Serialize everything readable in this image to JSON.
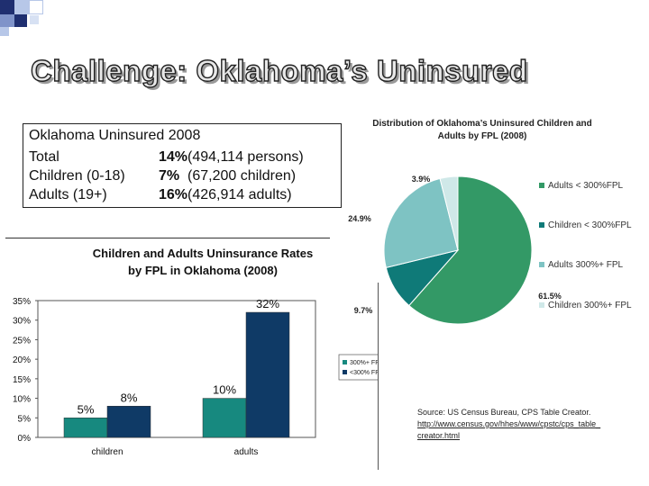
{
  "slide": {
    "title": "Challenge:  Oklahoma’s Uninsured"
  },
  "summary_box": {
    "heading": "Oklahoma Uninsured 2008",
    "rows": [
      {
        "label": "Total",
        "pct": "14%",
        "detail": "(494,114 persons)"
      },
      {
        "label": "Children (0-18)",
        "pct": "7%",
        "detail": "(67,200 children)"
      },
      {
        "label": "Adults (19+)",
        "pct": "16%",
        "detail": "(426,914 adults)"
      }
    ]
  },
  "bar_chart": {
    "title_line1": "Children and Adults Uninsurance Rates",
    "title_line2": "by FPL in Oklahoma (2008)",
    "legend": [
      "300%+ FPL",
      "<300% FPL"
    ]
  },
  "pie_chart": {
    "title_line1": "Distribution of Oklahoma’s Uninsured Children and",
    "title_line2": "Adults by FPL (2008)"
  },
  "source": {
    "text": "Source:  US Census Bureau, CPS Table Creator.",
    "link": "http://www.census.gov/hhes/www/cpstc/cps_table_",
    "link2": "creator.html"
  },
  "chart_data": [
    {
      "type": "bar",
      "title": "Children and Adults Uninsurance Rates by FPL in Oklahoma (2008)",
      "categories": [
        "children",
        "adults"
      ],
      "series": [
        {
          "name": "300%+ FPL",
          "values": [
            5,
            10
          ],
          "labels": [
            "5%",
            "10%"
          ],
          "color": "#17897f"
        },
        {
          "name": "<300% FPL",
          "values": [
            8,
            32
          ],
          "labels": [
            "8%",
            "32%"
          ],
          "color": "#0f3a66"
        }
      ],
      "ylim": [
        0,
        35
      ],
      "yticks": [
        0,
        5,
        10,
        15,
        20,
        25,
        30,
        35
      ],
      "ytick_labels": [
        "0%",
        "5%",
        "10%",
        "15%",
        "20%",
        "25%",
        "30%",
        "35%"
      ],
      "legend_position": "right"
    },
    {
      "type": "pie",
      "title": "Distribution of Oklahoma’s Uninsured Children and Adults by FPL (2008)",
      "slices": [
        {
          "name": "Adults < 300%FPL",
          "value": 61.5,
          "label": "61.5%",
          "color": "#339966"
        },
        {
          "name": "Children < 300%FPL",
          "value": 9.7,
          "label": "9.7%",
          "color": "#0f7a78"
        },
        {
          "name": "Adults 300%+ FPL",
          "value": 24.9,
          "label": "24.9%",
          "color": "#7ec3c3"
        },
        {
          "name": "Children 300%+ FPL",
          "value": 3.9,
          "label": "3.9%",
          "color": "#cfe8e8"
        }
      ],
      "legend_position": "right"
    }
  ]
}
